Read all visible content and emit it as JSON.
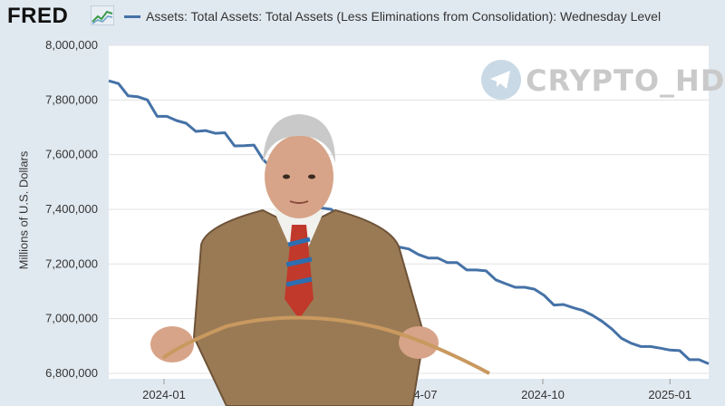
{
  "header": {
    "logo": "FRED",
    "legend_label": "Assets: Total Assets: Total Assets (Less Eliminations from Consolidation): Wednesday Level",
    "series_color": "#4572a7"
  },
  "watermark": {
    "text": "CRYPTO_HD",
    "icon": "telegram-icon"
  },
  "chart_data": {
    "type": "line",
    "title": "",
    "xlabel": "",
    "ylabel": "Millions of U.S. Dollars",
    "ylim": [
      6780000,
      8000000
    ],
    "y_ticks": [
      8000000,
      7800000,
      7600000,
      7400000,
      7200000,
      7000000,
      6800000
    ],
    "y_tick_labels": [
      "8,000,000",
      "7,800,000",
      "7,600,000",
      "7,400,000",
      "7,200,000",
      "7,000,000",
      "6,800,000"
    ],
    "x_range": [
      "2023-11-22",
      "2025-01-29"
    ],
    "x_ticks": [
      "2024-01-01",
      "2024-07-01",
      "2024-10-01",
      "2025-01-01"
    ],
    "x_tick_labels": [
      "2024-01",
      "2024-07",
      "2024-10",
      "2025-01"
    ],
    "grid": true,
    "series": [
      {
        "name": "Assets: Total Assets: Total Assets (Less Eliminations from Consolidation): Wednesday Level",
        "color": "#4572a7",
        "x": [
          "2023-11-22",
          "2023-11-29",
          "2023-12-06",
          "2023-12-13",
          "2023-12-20",
          "2023-12-27",
          "2024-01-03",
          "2024-01-10",
          "2024-01-17",
          "2024-01-24",
          "2024-01-31",
          "2024-02-07",
          "2024-02-14",
          "2024-02-21",
          "2024-02-28",
          "2024-03-06",
          "2024-03-13",
          "2024-03-20",
          "2024-03-27",
          "2024-04-03",
          "2024-04-10",
          "2024-04-17",
          "2024-04-24",
          "2024-05-01",
          "2024-05-08",
          "2024-05-15",
          "2024-05-22",
          "2024-05-29",
          "2024-06-05",
          "2024-06-12",
          "2024-06-19",
          "2024-06-26",
          "2024-07-03",
          "2024-07-10",
          "2024-07-17",
          "2024-07-24",
          "2024-07-31",
          "2024-08-07",
          "2024-08-14",
          "2024-08-21",
          "2024-08-28",
          "2024-09-04",
          "2024-09-11",
          "2024-09-18",
          "2024-09-25",
          "2024-10-02",
          "2024-10-09",
          "2024-10-16",
          "2024-10-23",
          "2024-10-30",
          "2024-11-06",
          "2024-11-13",
          "2024-11-20",
          "2024-11-27",
          "2024-12-04",
          "2024-12-11",
          "2024-12-18",
          "2024-12-25",
          "2025-01-01",
          "2025-01-08",
          "2025-01-15",
          "2025-01-22",
          "2025-01-29"
        ],
        "values": [
          7870000,
          7860000,
          7815000,
          7812000,
          7800000,
          7740000,
          7740000,
          7725000,
          7715000,
          7685000,
          7688000,
          7678000,
          7680000,
          7632000,
          7633000,
          7635000,
          7580000,
          7548000,
          7530000,
          7488000,
          7460000,
          7440000,
          7405000,
          7400000,
          7365000,
          7340000,
          7310000,
          7290000,
          7280000,
          7262000,
          7262000,
          7255000,
          7235000,
          7222000,
          7222000,
          7205000,
          7205000,
          7178000,
          7178000,
          7175000,
          7142000,
          7128000,
          7115000,
          7115000,
          7108000,
          7085000,
          7050000,
          7052000,
          7040000,
          7030000,
          7012000,
          6990000,
          6962000,
          6928000,
          6910000,
          6898000,
          6898000,
          6892000,
          6885000,
          6883000,
          6850000,
          6850000,
          6835000
        ]
      }
    ]
  }
}
